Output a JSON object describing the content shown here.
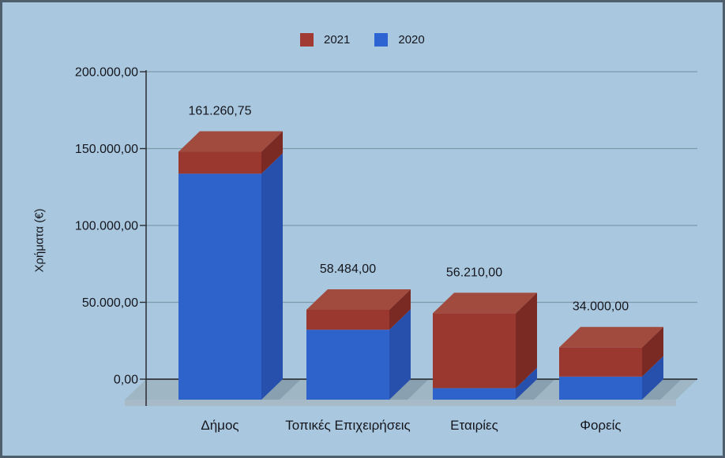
{
  "window": {
    "background": "#a9c8df",
    "frame_border": "#4f5e6c"
  },
  "legend": {
    "position": "top",
    "items": [
      {
        "label": "2021",
        "color": "#a03a33"
      },
      {
        "label": "2020",
        "color": "#2e64d2"
      }
    ]
  },
  "chart_data": {
    "type": "bar",
    "stacked": true,
    "projection": "3d",
    "title": "",
    "xlabel": "",
    "ylabel": "Χρήματα (€)",
    "categories": [
      "Δήμος",
      "Τοπικές Επιχειρήσεις",
      "Εταιρίες",
      "Φορείς"
    ],
    "series": [
      {
        "name": "2020",
        "color": "#2e63cb",
        "values": [
          147000,
          45500,
          7500,
          15000
        ]
      },
      {
        "name": "2021",
        "color": "#9a372f",
        "values": [
          14260.75,
          12984,
          48710,
          19000
        ]
      }
    ],
    "totals": [
      161260.75,
      58484.0,
      56210.0,
      34000.0
    ],
    "total_labels": [
      "161.260,75",
      "58.484,00",
      "56.210,00",
      "34.000,00"
    ],
    "ylim": [
      0,
      200000
    ],
    "ytick_step": 50000,
    "ytick_labels": [
      "0,00",
      "50.000,00",
      "100.000,00",
      "150.000,00",
      "200.000,00"
    ],
    "grid": true,
    "legend_position": "top"
  },
  "colors": {
    "background": "#a9c8df",
    "text": "#15151c",
    "grid": "#7e98ac",
    "zero_line": "#1c1c22",
    "axis": "#2b2b32",
    "floor": "#9fb6c5",
    "floor_edge": "#a7bac8",
    "shadow": "rgba(58,82,104,0.22)",
    "bar_blue_front": "#2e63cb",
    "bar_blue_side": "#2750ad",
    "bar_red_front": "#9a372f",
    "bar_red_side": "#7a2a23",
    "bar_red_top": "#a14a3e"
  }
}
